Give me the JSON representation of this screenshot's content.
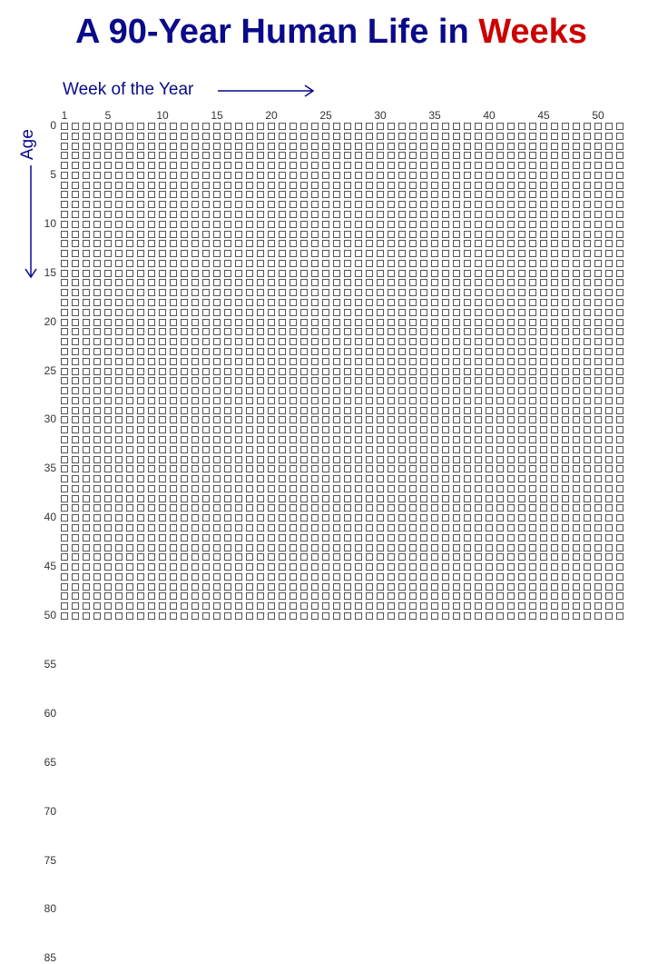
{
  "title": {
    "main": "A 90-Year Human Life in ",
    "accent": "Weeks"
  },
  "week_axis_label": "Week of the Year",
  "age_axis_label": "Age",
  "weeks_per_year": 52,
  "years": 90,
  "week_ticks": [
    "1",
    "5",
    "10",
    "15",
    "20",
    "25",
    "30",
    "35",
    "40",
    "45",
    "50"
  ],
  "age_ticks": [
    "0",
    "5",
    "10",
    "15",
    "20",
    "25",
    "30",
    "35",
    "40",
    "45",
    "50",
    "55",
    "60",
    "65",
    "70",
    "75",
    "80",
    "85"
  ],
  "colors": {
    "title": "#0a0a8a",
    "accent": "#cc0000",
    "box_border": "#555555"
  }
}
